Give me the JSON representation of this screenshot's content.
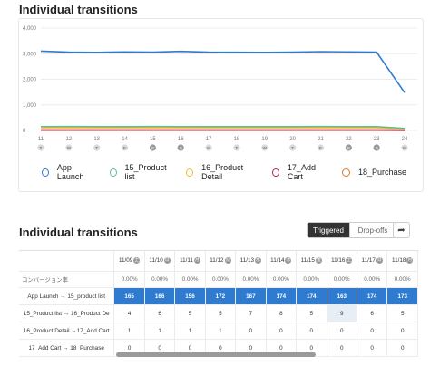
{
  "top_title": "Individual transitions",
  "chart_data": {
    "type": "line",
    "y_ticks": [
      "4,000",
      "3,000",
      "2,000",
      "1,000",
      "0"
    ],
    "ylim": [
      0,
      4000
    ],
    "x_dates": [
      "11",
      "12",
      "13",
      "14",
      "15",
      "16",
      "17",
      "18",
      "19",
      "20",
      "21",
      "22",
      "23",
      "24"
    ],
    "x_days": [
      "T",
      "W",
      "T",
      "F",
      "S",
      "S",
      "M",
      "T",
      "W",
      "T",
      "F",
      "S",
      "S",
      "M"
    ],
    "x_highlight": [
      false,
      false,
      false,
      false,
      true,
      true,
      false,
      false,
      false,
      false,
      false,
      true,
      true,
      false
    ],
    "series": [
      {
        "name": "App Launch",
        "color": "#2f7bd0",
        "values": [
          3100,
          3060,
          3050,
          3070,
          3060,
          3090,
          3060,
          3055,
          3050,
          3060,
          3080,
          3070,
          3060,
          1480
        ]
      },
      {
        "name": "15_Product list",
        "color": "#5bbf92",
        "values": [
          150,
          155,
          150,
          150,
          155,
          150,
          150,
          150,
          150,
          150,
          155,
          150,
          150,
          80
        ]
      },
      {
        "name": "16_Product Detail",
        "color": "#f0c020",
        "values": [
          110,
          110,
          110,
          110,
          110,
          110,
          110,
          110,
          110,
          110,
          110,
          110,
          110,
          60
        ]
      },
      {
        "name": "17_Add Cart",
        "color": "#b8205a",
        "values": [
          20,
          20,
          20,
          20,
          20,
          20,
          20,
          20,
          20,
          20,
          20,
          20,
          20,
          10
        ]
      },
      {
        "name": "18_Purchase",
        "color": "#e07820",
        "values": [
          5,
          5,
          5,
          5,
          5,
          5,
          5,
          5,
          5,
          5,
          5,
          5,
          5,
          3
        ]
      }
    ]
  },
  "bottom_title": "Individual transitions",
  "toggle": {
    "triggered": "Triggered",
    "dropoffs": "Drop-offs"
  },
  "share_icon": "share-icon",
  "table": {
    "columns": [
      {
        "date": "11/09",
        "day": "土"
      },
      {
        "date": "11/10",
        "day": "日"
      },
      {
        "date": "11/11",
        "day": "月"
      },
      {
        "date": "11/12",
        "day": "火"
      },
      {
        "date": "11/13",
        "day": "水"
      },
      {
        "date": "11/14",
        "day": "木"
      },
      {
        "date": "11/15",
        "day": "金"
      },
      {
        "date": "11/16",
        "day": "土"
      },
      {
        "date": "11/17",
        "day": "日"
      },
      {
        "date": "11/18",
        "day": "月"
      }
    ],
    "rate_label": "コンバージョン率",
    "rate_values": [
      "0.00%",
      "0.00%",
      "0.00%",
      "0.00%",
      "0.00%",
      "0.00%",
      "0.00%",
      "0.00%",
      "0.00%",
      "0.00%"
    ],
    "rows": [
      {
        "label": "App Launch → 15_product list",
        "values": [
          "165",
          "166",
          "156",
          "172",
          "167",
          "174",
          "174",
          "163",
          "174",
          "173"
        ],
        "highlight": true
      },
      {
        "label": "15_Product list → 16_Product De",
        "values": [
          "4",
          "6",
          "5",
          "5",
          "7",
          "8",
          "5",
          "9",
          "6",
          "5"
        ],
        "highlight": false
      },
      {
        "label": "16_Product Detail →17_Add Cart",
        "values": [
          "1",
          "1",
          "1",
          "1",
          "0",
          "0",
          "0",
          "0",
          "0",
          "0"
        ],
        "highlight": false
      },
      {
        "label": "17_Add Cart → 18_Purchase",
        "values": [
          "0",
          "0",
          "0",
          "0",
          "0",
          "0",
          "0",
          "0",
          "0",
          "0"
        ],
        "highlight": false
      }
    ]
  }
}
